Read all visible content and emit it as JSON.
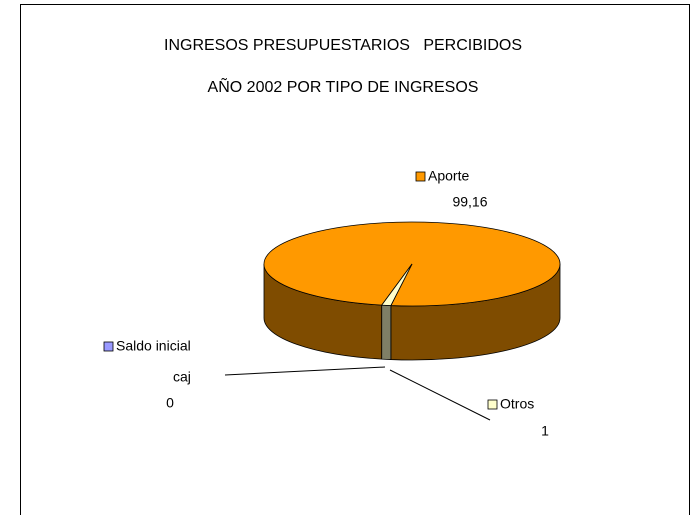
{
  "chart_data": {
    "type": "pie3d",
    "title": [
      "INGRESOS PRESUPUESTARIOS   PERCIBIDOS",
      "AÑO 2002 POR TIPO DE INGRESOS"
    ],
    "categories": [
      [
        "Aporte"
      ],
      [
        "Saldo inicial",
        "caj"
      ],
      [
        "Otros"
      ]
    ],
    "values": [
      99.16,
      0,
      1
    ],
    "value_labels": [
      "99,16",
      "0",
      "1"
    ],
    "colors": [
      "#ff9900",
      "#9999ff",
      "#ffffcc"
    ],
    "side_colors": [
      "#7f4c00",
      "#4c4c7f",
      "#7f7f66"
    ]
  }
}
